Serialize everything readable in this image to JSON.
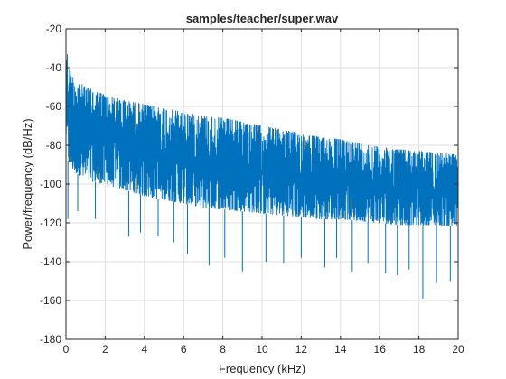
{
  "chart_data": {
    "type": "line",
    "title": "samples/teacher/super.wav",
    "xlabel": "Frequency (kHz)",
    "ylabel": "Power/frequency (dB/Hz)",
    "xlim": [
      0,
      20
    ],
    "ylim": [
      -180,
      -20
    ],
    "xticks": [
      0,
      2,
      4,
      6,
      8,
      10,
      12,
      14,
      16,
      18,
      20
    ],
    "yticks": [
      -180,
      -160,
      -140,
      -120,
      -100,
      -80,
      -60,
      -40,
      -20
    ],
    "x_tick_labels": [
      "0",
      "2",
      "4",
      "6",
      "8",
      "10",
      "12",
      "14",
      "16",
      "18",
      "20"
    ],
    "y_tick_labels": [
      "-180",
      "-160",
      "-140",
      "-120",
      "-100",
      "-80",
      "-60",
      "-40",
      "-20"
    ],
    "grid": true,
    "line_color": "#0072BD",
    "envelope": {
      "x": [
        0,
        0.1,
        0.3,
        0.6,
        1,
        2,
        3,
        4,
        5,
        6,
        7,
        8,
        9,
        10,
        11,
        12,
        13,
        14,
        15,
        16,
        17,
        18,
        19,
        20
      ],
      "upper": [
        -22,
        -38,
        -44,
        -47,
        -50,
        -54,
        -57,
        -59,
        -61,
        -63,
        -65,
        -66,
        -68,
        -70,
        -72,
        -74,
        -76,
        -77,
        -79,
        -81,
        -82,
        -83,
        -84,
        -85
      ],
      "lower": [
        -75,
        -88,
        -92,
        -95,
        -98,
        -100,
        -103,
        -106,
        -108,
        -110,
        -112,
        -113,
        -114,
        -115,
        -116,
        -117,
        -118,
        -118,
        -119,
        -120,
        -121,
        -121,
        -121,
        -122
      ],
      "min_spikes": [
        [
          0.1,
          -118
        ],
        [
          0.6,
          -114
        ],
        [
          1.5,
          -118
        ],
        [
          3.2,
          -127
        ],
        [
          3.8,
          -125
        ],
        [
          4.7,
          -127
        ],
        [
          5.5,
          -130
        ],
        [
          6.2,
          -136
        ],
        [
          7.3,
          -142
        ],
        [
          8.1,
          -138
        ],
        [
          9.0,
          -145
        ],
        [
          10.2,
          -140
        ],
        [
          11.1,
          -141
        ],
        [
          12.0,
          -138
        ],
        [
          13.2,
          -143
        ],
        [
          13.8,
          -138
        ],
        [
          14.6,
          -145
        ],
        [
          15.4,
          -141
        ],
        [
          16.3,
          -146
        ],
        [
          16.9,
          -147
        ],
        [
          17.5,
          -144
        ],
        [
          18.2,
          -159
        ],
        [
          18.9,
          -151
        ],
        [
          19.6,
          -150
        ]
      ]
    }
  }
}
